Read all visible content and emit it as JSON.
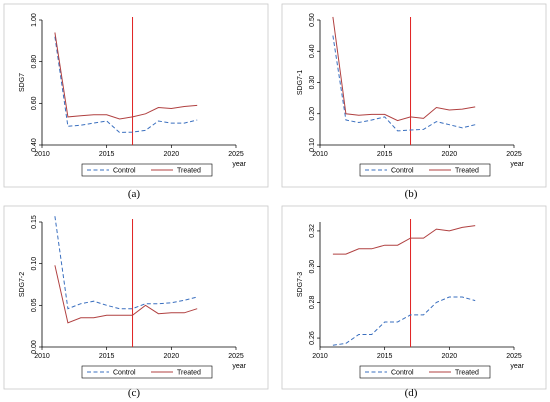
{
  "colors": {
    "control": "#3a6fbf",
    "treated": "#b04040",
    "vline": "#e02020"
  },
  "chart_data": [
    {
      "type": "line",
      "panel_label": "(a)",
      "ylabel": "SDG7",
      "xlabel": "year",
      "xlim": [
        2010,
        2025
      ],
      "xticks": [
        2010,
        2015,
        2020,
        2025
      ],
      "ylim": [
        0.4,
        1.0
      ],
      "yticks": [
        0.4,
        0.6,
        0.8,
        1.0
      ],
      "ytick_labels": [
        "0.40",
        "0.60",
        "0.80",
        "1.00"
      ],
      "vline": 2017,
      "x": [
        2011,
        2012,
        2013,
        2014,
        2015,
        2016,
        2017,
        2018,
        2019,
        2020,
        2021,
        2022
      ],
      "series": [
        {
          "name": "Control",
          "style": "dashed",
          "values": [
            0.92,
            0.49,
            0.495,
            0.505,
            0.515,
            0.46,
            0.462,
            0.47,
            0.515,
            0.505,
            0.505,
            0.52
          ]
        },
        {
          "name": "Treated",
          "style": "solid",
          "values": [
            0.94,
            0.535,
            0.54,
            0.545,
            0.545,
            0.525,
            0.535,
            0.55,
            0.58,
            0.575,
            0.585,
            0.59
          ]
        }
      ],
      "legend_position": "bottom"
    },
    {
      "type": "line",
      "panel_label": "(b)",
      "ylabel": "SDG7-1",
      "xlabel": "year",
      "xlim": [
        2010,
        2025
      ],
      "xticks": [
        2010,
        2015,
        2020,
        2025
      ],
      "ylim": [
        0.1,
        0.5
      ],
      "yticks": [
        0.1,
        0.2,
        0.3,
        0.4,
        0.5
      ],
      "ytick_labels": [
        "0.10",
        "0.20",
        "0.30",
        "0.40",
        "0.50"
      ],
      "vline": 2017,
      "x": [
        2011,
        2012,
        2013,
        2014,
        2015,
        2016,
        2017,
        2018,
        2019,
        2020,
        2021,
        2022
      ],
      "series": [
        {
          "name": "Control",
          "style": "dashed",
          "values": [
            0.45,
            0.18,
            0.172,
            0.18,
            0.19,
            0.145,
            0.148,
            0.15,
            0.175,
            0.165,
            0.155,
            0.165
          ]
        },
        {
          "name": "Treated",
          "style": "solid",
          "values": [
            0.51,
            0.2,
            0.195,
            0.198,
            0.198,
            0.178,
            0.19,
            0.185,
            0.22,
            0.212,
            0.215,
            0.222
          ]
        }
      ],
      "legend_position": "bottom"
    },
    {
      "type": "line",
      "panel_label": "(c)",
      "ylabel": "SDG7-2",
      "xlabel": "year",
      "xlim": [
        2010,
        2025
      ],
      "xticks": [
        2010,
        2015,
        2020,
        2025
      ],
      "ylim": [
        0.0,
        0.15
      ],
      "yticks": [
        0.0,
        0.05,
        0.1,
        0.15
      ],
      "ytick_labels": [
        "0.00",
        "0.05",
        "0.10",
        "0.15"
      ],
      "vline": 2017,
      "x": [
        2011,
        2012,
        2013,
        2014,
        2015,
        2016,
        2017,
        2018,
        2019,
        2020,
        2021,
        2022
      ],
      "series": [
        {
          "name": "Control",
          "style": "dashed",
          "values": [
            0.157,
            0.046,
            0.052,
            0.055,
            0.05,
            0.046,
            0.046,
            0.052,
            0.052,
            0.053,
            0.056,
            0.06
          ]
        },
        {
          "name": "Treated",
          "style": "solid",
          "values": [
            0.098,
            0.029,
            0.035,
            0.035,
            0.038,
            0.038,
            0.038,
            0.05,
            0.04,
            0.041,
            0.041,
            0.046
          ]
        }
      ],
      "legend_position": "bottom"
    },
    {
      "type": "line",
      "panel_label": "(d)",
      "ylabel": "SDG7-3",
      "xlabel": "year",
      "xlim": [
        2010,
        2025
      ],
      "xticks": [
        2010,
        2015,
        2020,
        2025
      ],
      "ylim": [
        0.255,
        0.325
      ],
      "yticks": [
        0.26,
        0.28,
        0.3,
        0.32
      ],
      "ytick_labels": [
        "0.26",
        "0.28",
        "0.30",
        "0.32"
      ],
      "vline": 2017,
      "x": [
        2011,
        2012,
        2013,
        2014,
        2015,
        2016,
        2017,
        2018,
        2019,
        2020,
        2021,
        2022
      ],
      "series": [
        {
          "name": "Control",
          "style": "dashed",
          "values": [
            0.256,
            0.257,
            0.262,
            0.262,
            0.269,
            0.269,
            0.273,
            0.273,
            0.28,
            0.283,
            0.283,
            0.281
          ]
        },
        {
          "name": "Treated",
          "style": "solid",
          "values": [
            0.307,
            0.307,
            0.31,
            0.31,
            0.312,
            0.312,
            0.316,
            0.316,
            0.321,
            0.32,
            0.322,
            0.323
          ]
        }
      ],
      "legend_position": "bottom"
    }
  ]
}
